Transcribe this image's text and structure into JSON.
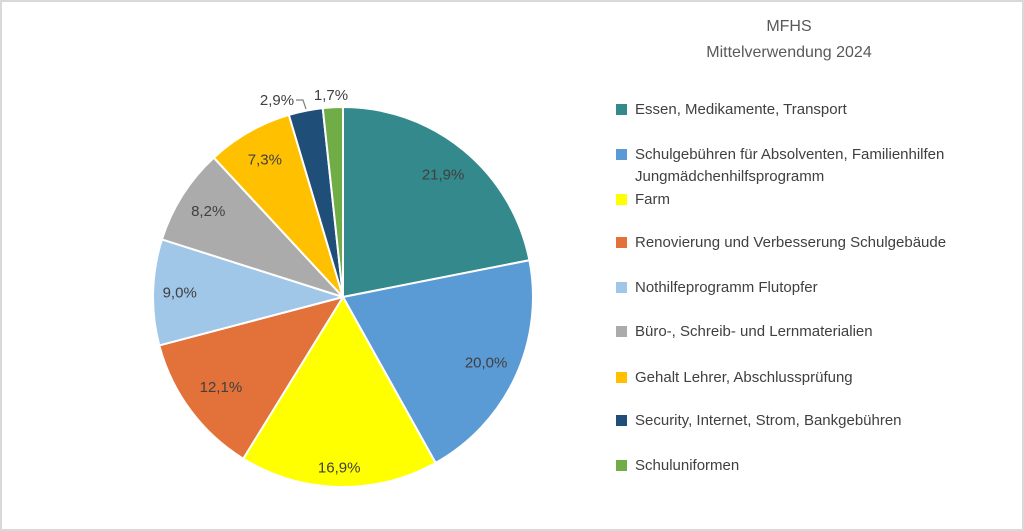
{
  "title": {
    "line1": "MFHS",
    "line2": "Mittelverwendung 2024"
  },
  "chart_data": {
    "type": "pie",
    "title": "MFHS Mittelverwendung 2024",
    "unit": "%",
    "number_format": "german-comma-decimal",
    "start_angle_deg": 0,
    "direction": "clockwise",
    "legend_position": "right",
    "label_color": "#404040",
    "slice_border_color": "#ffffff",
    "slices": [
      {
        "label": "Essen, Medikamente, Transport",
        "value": 21.9,
        "display": "21,9%",
        "color": "#33898C"
      },
      {
        "label": "Schulgebühren für Absolventen, Familienhilfen Jungmädchenhilfsprogramm",
        "value": 20.0,
        "display": "20,0%",
        "color": "#5B9BD5"
      },
      {
        "label": "Farm",
        "value": 16.9,
        "display": "16,9%",
        "color": "#FFFF00"
      },
      {
        "label": "Renovierung und Verbesserung Schulgebäude",
        "value": 12.1,
        "display": "12,1%",
        "color": "#E2713A"
      },
      {
        "label": "Nothilfeprogramm Flutopfer",
        "value": 9.0,
        "display": "9,0%",
        "color": "#A0C6E8"
      },
      {
        "label": "Büro-, Schreib- und Lernmaterialien",
        "value": 8.2,
        "display": "8,2%",
        "color": "#ABABAB"
      },
      {
        "label": "Gehalt Lehrer, Abschlussprüfung",
        "value": 7.3,
        "display": "7,3%",
        "color": "#FFC000"
      },
      {
        "label": "Security, Internet, Strom, Bankgebühren",
        "value": 2.9,
        "display": "2,9%",
        "color": "#1F4E79"
      },
      {
        "label": "Schuluniformen",
        "value": 1.7,
        "display": "1,7%",
        "color": "#70AD47"
      }
    ]
  }
}
